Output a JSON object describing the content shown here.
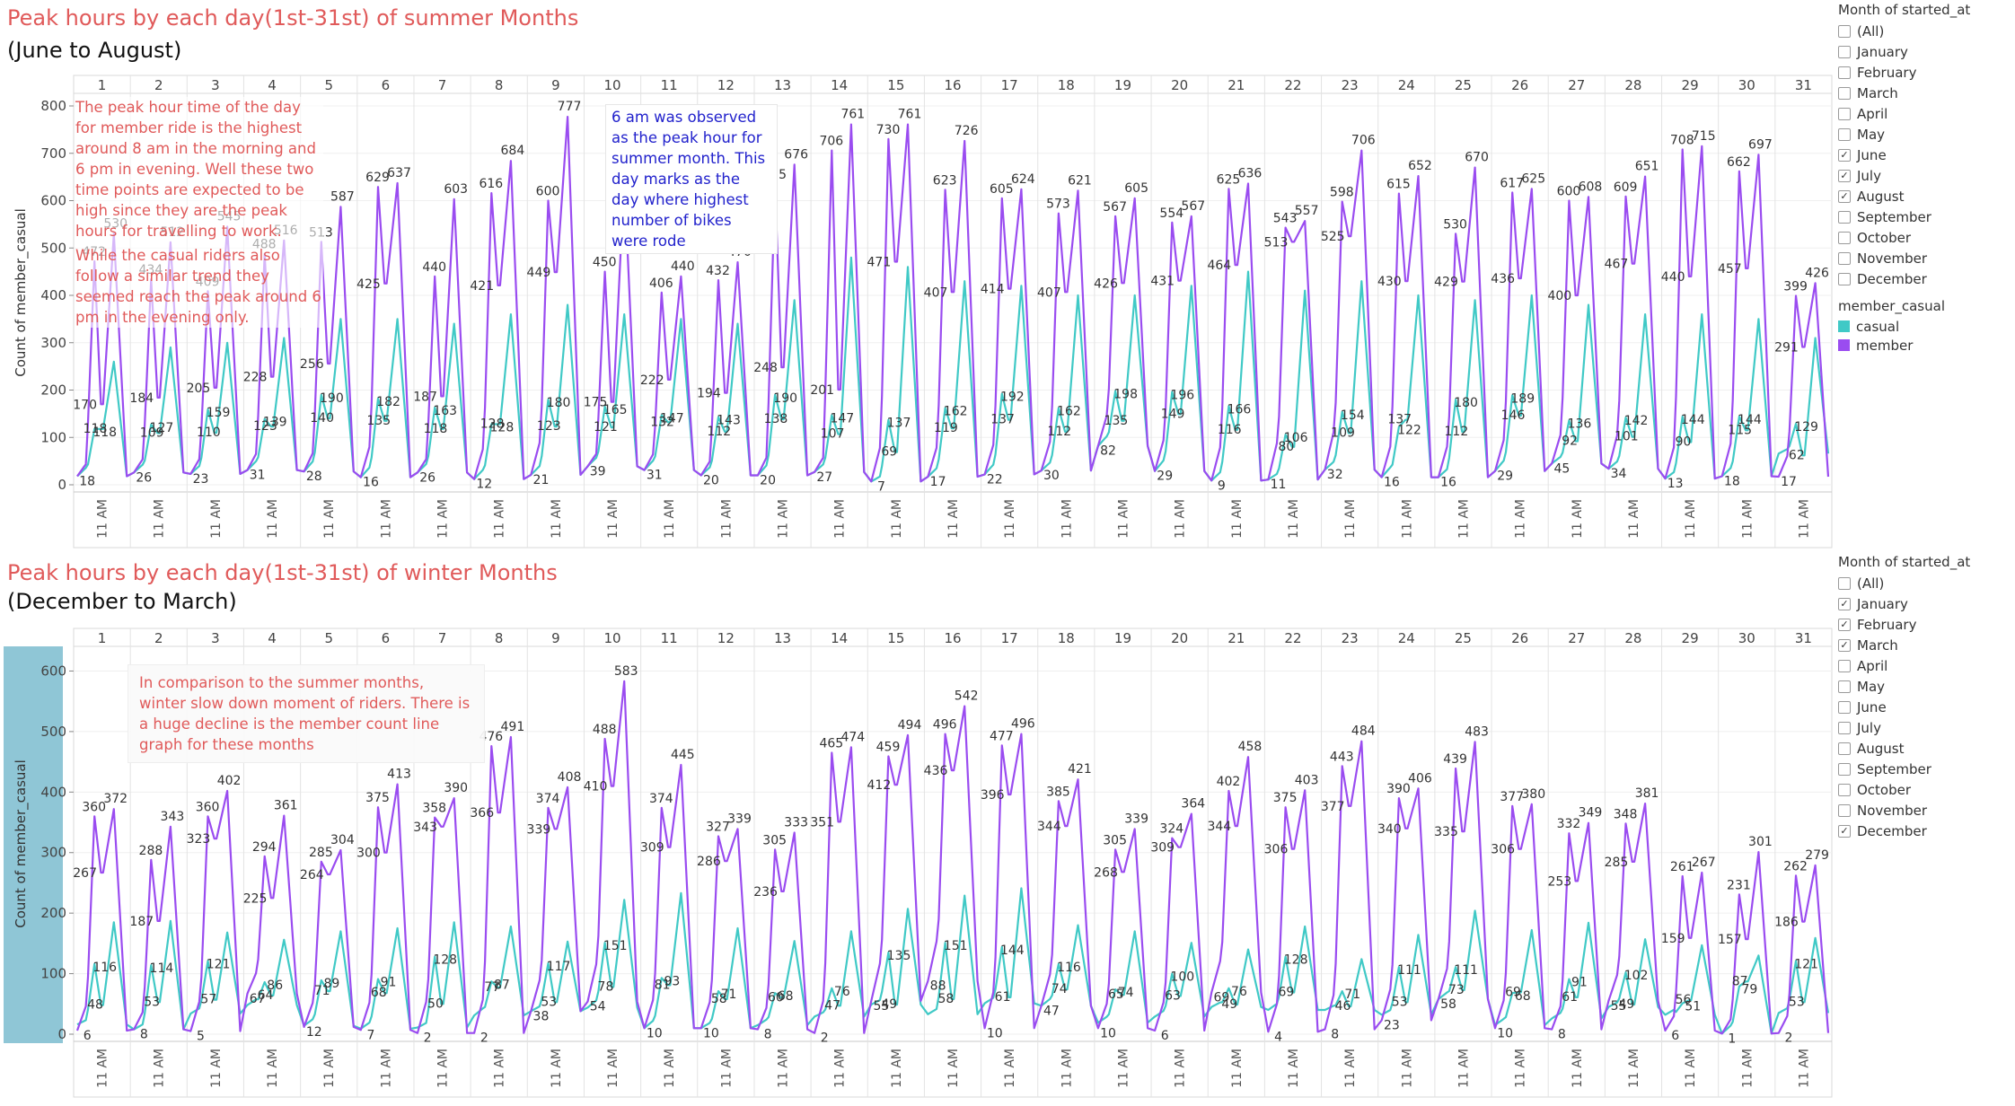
{
  "titles": {
    "summer_title": "Peak hours by each day(1st-31st) of summer Months",
    "summer_subtitle": "(June to  August)",
    "winter_title": "Peak hours by each day(1st-31st) of winter Months",
    "winter_subtitle": "(December to  March)"
  },
  "filters": [
    {
      "heading": "Month of started_at",
      "options": [
        {
          "label": "(All)",
          "checked": false
        },
        {
          "label": "January",
          "checked": false
        },
        {
          "label": "February",
          "checked": false
        },
        {
          "label": "March",
          "checked": false
        },
        {
          "label": "April",
          "checked": false
        },
        {
          "label": "May",
          "checked": false
        },
        {
          "label": "June",
          "checked": true
        },
        {
          "label": "July",
          "checked": true
        },
        {
          "label": "August",
          "checked": true
        },
        {
          "label": "September",
          "checked": false
        },
        {
          "label": "October",
          "checked": false
        },
        {
          "label": "November",
          "checked": false
        },
        {
          "label": "December",
          "checked": false
        }
      ]
    },
    {
      "heading": "Month of started_at",
      "options": [
        {
          "label": "(All)",
          "checked": false
        },
        {
          "label": "January",
          "checked": true
        },
        {
          "label": "February",
          "checked": true
        },
        {
          "label": "March",
          "checked": true
        },
        {
          "label": "April",
          "checked": false
        },
        {
          "label": "May",
          "checked": false
        },
        {
          "label": "June",
          "checked": false
        },
        {
          "label": "July",
          "checked": false
        },
        {
          "label": "August",
          "checked": false
        },
        {
          "label": "September",
          "checked": false
        },
        {
          "label": "October",
          "checked": false
        },
        {
          "label": "November",
          "checked": false
        },
        {
          "label": "December",
          "checked": true
        }
      ]
    }
  ],
  "legend": {
    "heading": "member_casual",
    "items": [
      {
        "label": "casual",
        "color": "#40c9c6"
      },
      {
        "label": "member",
        "color": "#9a4cf0"
      }
    ]
  },
  "annotations": {
    "summer_note": "The peak hour time of the day for member ride is the highest around 8 am in the morning and 6 pm in evening. Well these two time points are expected to be high since they are the peak hours for travelling to work.",
    "summer_note2": "While the casual riders also follow a similar trend they seemed reach the peak around 6 pm in the evening only.",
    "peak_note": "6 am was observed as the peak hour for summer month. This day marks as the day where highest number of bikes were rode",
    "winter_note": "In comparison to the summer months, winter slow down moment of riders. There is a huge decline is the member count line graph for these months"
  },
  "chart_data": [
    {
      "type": "line",
      "title": "Peak hours by each day(1st-31st) of summer Months",
      "subtitle": "(June to  August)",
      "ylabel": "Count of member_casual",
      "ylim": [
        0,
        800
      ],
      "yticks": [
        0,
        100,
        200,
        300,
        400,
        500,
        600,
        700,
        800
      ],
      "day_headers": [
        "1",
        "2",
        "3",
        "4",
        "5",
        "6",
        "7",
        "8",
        "9",
        "10",
        "11",
        "12",
        "13",
        "14",
        "15",
        "16",
        "17",
        "18",
        "19",
        "20",
        "21",
        "22",
        "23",
        "24",
        "25",
        "26",
        "27",
        "28",
        "29",
        "30",
        "31"
      ],
      "x_tick_label": "11 AM",
      "grid": true,
      "series": [
        {
          "name": "member",
          "color": "#9a4cf0",
          "evening_peak": [
            530,
            512,
            545,
            516,
            587,
            637,
            603,
            684,
            777,
            650,
            440,
            470,
            676,
            761,
            761,
            726,
            624,
            621,
            605,
            567,
            636,
            557,
            706,
            652,
            670,
            625,
            608,
            651,
            715,
            697,
            426
          ],
          "morning_peak": [
            472,
            434,
            409,
            488,
            513,
            629,
            440,
            616,
            600,
            450,
            406,
            432,
            635,
            706,
            730,
            623,
            605,
            573,
            567,
            554,
            625,
            543,
            598,
            615,
            530,
            617,
            600,
            609,
            708,
            662,
            399
          ],
          "midday": [
            170,
            184,
            205,
            228,
            256,
            425,
            187,
            421,
            449,
            175,
            222,
            194,
            248,
            201,
            471,
            407,
            414,
            407,
            426,
            431,
            464,
            513,
            525,
            430,
            429,
            436,
            400,
            467,
            440,
            457,
            291
          ],
          "night_low": [
            18,
            26,
            23,
            31,
            28,
            16,
            26,
            12,
            21,
            39,
            31,
            20,
            20,
            27,
            7,
            17,
            22,
            30,
            82,
            29,
            9,
            11,
            32,
            16,
            16,
            29,
            45,
            34,
            13,
            18,
            17
          ]
        },
        {
          "name": "casual",
          "color": "#40c9c6",
          "evening_peak": [
            260,
            290,
            300,
            310,
            350,
            350,
            340,
            360,
            380,
            360,
            350,
            340,
            390,
            480,
            460,
            430,
            420,
            400,
            400,
            420,
            450,
            410,
            430,
            400,
            390,
            400,
            380,
            360,
            360,
            350,
            310
          ],
          "morning_peak": [
            118,
            127,
            159,
            139,
            190,
            182,
            163,
            128,
            180,
            165,
            147,
            143,
            190,
            147,
            137,
            162,
            192,
            162,
            198,
            196,
            166,
            106,
            154,
            122,
            180,
            189,
            136,
            142,
            144,
            144,
            129
          ],
          "midday": [
            118,
            109,
            110,
            123,
            140,
            135,
            118,
            128,
            123,
            121,
            132,
            112,
            138,
            107,
            69,
            119,
            137,
            112,
            135,
            149,
            116,
            80,
            109,
            137,
            112,
            146,
            92,
            101,
            90,
            115,
            62
          ],
          "night_low": [
            18,
            26,
            23,
            31,
            28,
            16,
            26,
            12,
            21,
            39,
            31,
            20,
            20,
            27,
            7,
            17,
            22,
            30,
            82,
            29,
            9,
            11,
            32,
            16,
            16,
            29,
            45,
            34,
            13,
            18,
            66
          ]
        }
      ]
    },
    {
      "type": "line",
      "title": "Peak hours by each day(1st-31st) of winter Months",
      "subtitle": "(December to  March)",
      "ylabel": "Count of member_casual",
      "ylim": [
        0,
        620
      ],
      "yticks": [
        0,
        100,
        200,
        300,
        400,
        500,
        600
      ],
      "day_headers": [
        "1",
        "2",
        "3",
        "4",
        "5",
        "6",
        "7",
        "8",
        "9",
        "10",
        "11",
        "12",
        "13",
        "14",
        "15",
        "16",
        "17",
        "18",
        "19",
        "20",
        "21",
        "22",
        "23",
        "24",
        "25",
        "26",
        "27",
        "28",
        "29",
        "30",
        "31"
      ],
      "x_tick_label": "11 AM",
      "grid": true,
      "series": [
        {
          "name": "member",
          "color": "#9a4cf0",
          "evening_peak": [
            372,
            343,
            402,
            361,
            304,
            413,
            390,
            491,
            408,
            583,
            445,
            339,
            333,
            474,
            494,
            542,
            496,
            421,
            339,
            364,
            458,
            403,
            484,
            406,
            483,
            380,
            349,
            381,
            267,
            301,
            279
          ],
          "morning_peak": [
            360,
            288,
            360,
            294,
            285,
            375,
            358,
            476,
            374,
            488,
            374,
            327,
            305,
            465,
            459,
            496,
            477,
            385,
            305,
            324,
            402,
            375,
            443,
            390,
            439,
            377,
            332,
            348,
            261,
            231,
            262
          ],
          "midday": [
            267,
            187,
            323,
            225,
            264,
            300,
            343,
            366,
            339,
            410,
            309,
            286,
            236,
            351,
            412,
            436,
            396,
            344,
            268,
            309,
            344,
            306,
            377,
            340,
            335,
            306,
            253,
            285,
            159,
            157,
            186
          ],
          "night_low": [
            6,
            8,
            5,
            67,
            12,
            7,
            2,
            2,
            38,
            54,
            10,
            10,
            8,
            2,
            55,
            88,
            10,
            47,
            10,
            6,
            69,
            4,
            8,
            23,
            58,
            10,
            8,
            55,
            6,
            1,
            2
          ]
        },
        {
          "name": "casual",
          "color": "#40c9c6",
          "evening_peak": [
            185,
            187,
            168,
            156,
            170,
            175,
            185,
            178,
            153,
            222,
            233,
            175,
            154,
            170,
            207,
            229,
            241,
            180,
            170,
            151,
            140,
            178,
            124,
            164,
            204,
            172,
            184,
            157,
            147,
            130,
            159
          ],
          "morning_peak": [
            116,
            114,
            121,
            86,
            89,
            91,
            128,
            87,
            117,
            151,
            93,
            71,
            68,
            76,
            135,
            151,
            144,
            116,
            74,
            100,
            76,
            128,
            71,
            111,
            111,
            68,
            91,
            102,
            51,
            79,
            121
          ],
          "midday": [
            48,
            53,
            57,
            64,
            71,
            68,
            50,
            77,
            53,
            78,
            81,
            58,
            60,
            47,
            49,
            58,
            61,
            74,
            65,
            63,
            49,
            69,
            46,
            53,
            73,
            69,
            61,
            49,
            56,
            87,
            53
          ],
          "night_low": [
            16,
            8,
            34,
            48,
            14,
            9,
            11,
            31,
            38,
            44,
            10,
            10,
            15,
            29,
            49,
            33,
            51,
            47,
            19,
            29,
            45,
            40,
            40,
            32,
            58,
            15,
            26,
            45,
            32,
            1,
            35
          ]
        }
      ]
    }
  ]
}
